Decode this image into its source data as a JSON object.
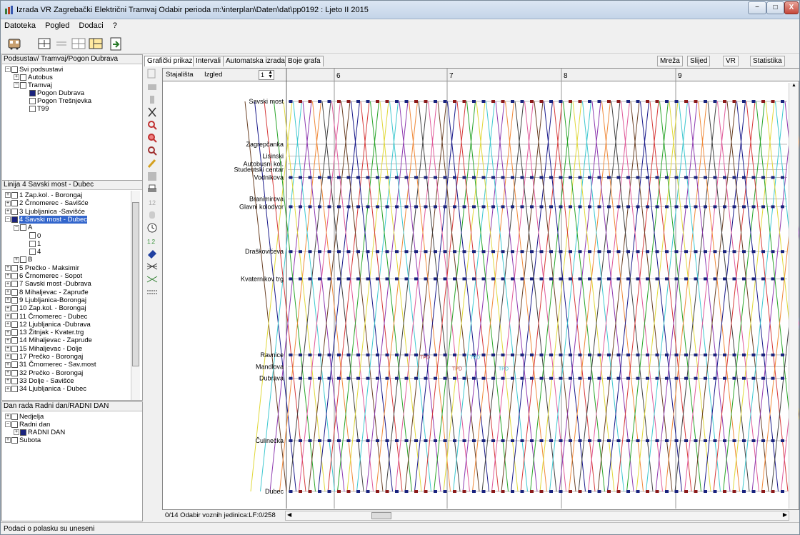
{
  "window": {
    "title": "Izrada VR  Zagrebački Električni Tramvaj Odabir perioda m:\\interplan\\Daten\\dat\\pp0192 : Ljeto II 2015"
  },
  "menu": [
    "Datoteka",
    "Pogled",
    "Dodaci",
    "?"
  ],
  "podsustav_panel": {
    "header": "Podsustav/ Tramvaj/Pogon Dubrava",
    "items": [
      {
        "label": "Svi podsustavi",
        "level": 0,
        "expander": "−",
        "checked": false
      },
      {
        "label": "Autobus",
        "level": 1,
        "expander": "+",
        "checked": false
      },
      {
        "label": "Tramvaj",
        "level": 1,
        "expander": "−",
        "checked": false
      },
      {
        "label": "Pogon Dubrava",
        "level": 2,
        "expander": "",
        "checked": true
      },
      {
        "label": "Pogon Trešnjevka",
        "level": 2,
        "expander": "",
        "checked": false
      },
      {
        "label": "T99",
        "level": 2,
        "expander": "",
        "checked": false
      }
    ]
  },
  "linija_panel": {
    "header": "Linija  4 Savski most - Dubec",
    "items": [
      {
        "label": "1 Zap.kol. - Borongaj",
        "level": 0,
        "expander": "+",
        "checked": false
      },
      {
        "label": "2 Črnomerec - Savišće",
        "level": 0,
        "expander": "+",
        "checked": false
      },
      {
        "label": "3 Ljubljanica -Savišće",
        "level": 0,
        "expander": "+",
        "checked": false
      },
      {
        "label": "4 Savski most - Dubec",
        "level": 0,
        "expander": "−",
        "checked": true,
        "selected": true
      },
      {
        "label": "A",
        "level": 1,
        "expander": "−",
        "checked": false
      },
      {
        "label": "0",
        "level": 2,
        "expander": "",
        "checked": false
      },
      {
        "label": "1",
        "level": 2,
        "expander": "",
        "checked": false
      },
      {
        "label": "4",
        "level": 2,
        "expander": "",
        "checked": false
      },
      {
        "label": "B",
        "level": 1,
        "expander": "+",
        "checked": false
      },
      {
        "label": "5 Prečko - Maksimir",
        "level": 0,
        "expander": "+",
        "checked": false
      },
      {
        "label": "6 Črnomerec - Sopot",
        "level": 0,
        "expander": "+",
        "checked": false
      },
      {
        "label": "7 Savski most -Dubrava",
        "level": 0,
        "expander": "+",
        "checked": false
      },
      {
        "label": "8 Mihaljevac - Zapruđe",
        "level": 0,
        "expander": "+",
        "checked": false
      },
      {
        "label": "9 Ljubljanica-Borongaj",
        "level": 0,
        "expander": "+",
        "checked": false
      },
      {
        "label": "10 Zap.kol. - Borongaj",
        "level": 0,
        "expander": "+",
        "checked": false
      },
      {
        "label": "11 Črnomerec - Dubec",
        "level": 0,
        "expander": "+",
        "checked": false
      },
      {
        "label": "12 Ljubljanica -Dubrava",
        "level": 0,
        "expander": "+",
        "checked": false
      },
      {
        "label": "13 Žitnjak - Kvater.trg",
        "level": 0,
        "expander": "+",
        "checked": false
      },
      {
        "label": "14 Mihaljevac - Zapruđe",
        "level": 0,
        "expander": "+",
        "checked": false
      },
      {
        "label": "15 Mihaljevac - Dolje",
        "level": 0,
        "expander": "+",
        "checked": false
      },
      {
        "label": "17 Prečko - Borongaj",
        "level": 0,
        "expander": "+",
        "checked": false
      },
      {
        "label": "31 Črnomerec - Sav.most",
        "level": 0,
        "expander": "+",
        "checked": false
      },
      {
        "label": "32 Prečko - Borongaj",
        "level": 0,
        "expander": "+",
        "checked": false
      },
      {
        "label": "33 Dolje - Savišće",
        "level": 0,
        "expander": "+",
        "checked": false
      },
      {
        "label": "34 Ljubljanica - Dubec",
        "level": 0,
        "expander": "+",
        "checked": false
      }
    ]
  },
  "dan_panel": {
    "header": "Dan rada  Radni dan/RADNI DAN",
    "items": [
      {
        "label": "Nedjelja",
        "level": 0,
        "expander": "+",
        "checked": false
      },
      {
        "label": "Radni dan",
        "level": 0,
        "expander": "−",
        "checked": false
      },
      {
        "label": "RADNI DAN",
        "level": 1,
        "expander": "+",
        "checked": true
      },
      {
        "label": "Subota",
        "level": 0,
        "expander": "+",
        "checked": false
      }
    ]
  },
  "tabs_left": [
    "Grafički prikaz",
    "Intervali",
    "Automatska izrada",
    "Boje grafa"
  ],
  "tabs_right": [
    "Mreža",
    "Slijed",
    "VR",
    "Statistika"
  ],
  "graph": {
    "col_stajalista": "Stajališta",
    "col_izgled": "Izgled",
    "izgled_value": "1",
    "hours": [
      "6",
      "7",
      "8",
      "9"
    ],
    "stops": [
      {
        "name": "Savski most",
        "pos": 0.0
      },
      {
        "name": "Zagrepčanka",
        "pos": 0.11
      },
      {
        "name": "Lisinski",
        "pos": 0.14
      },
      {
        "name": "Autobusni kol.",
        "pos": 0.16
      },
      {
        "name": "Studentski centar",
        "pos": 0.175
      },
      {
        "name": "Vodnikova",
        "pos": 0.195
      },
      {
        "name": "Branimirova",
        "pos": 0.25
      },
      {
        "name": "Glavni kolodvor",
        "pos": 0.27
      },
      {
        "name": "Draškovićeva",
        "pos": 0.385
      },
      {
        "name": "Kvaternikov trg",
        "pos": 0.455
      },
      {
        "name": "Ravnice",
        "pos": 0.65
      },
      {
        "name": "Mandlova",
        "pos": 0.68
      },
      {
        "name": "Dubrava",
        "pos": 0.71
      },
      {
        "name": "Čulinečka",
        "pos": 0.87
      },
      {
        "name": "Dubec",
        "pos": 1.0
      }
    ],
    "annotations": [
      "TPD",
      "TPD",
      "TPD",
      "TPD"
    ],
    "footer": "0/14 Odabir voznih jedinica:LF:0/258",
    "line_colors": [
      "#6b4226",
      "#1a1a8a",
      "#d63a3a",
      "#2aa52a",
      "#e0d83a",
      "#3ec8d0",
      "#8e3ab0",
      "#f08a3a",
      "#444444",
      "#e05a9a"
    ]
  },
  "status": "Podaci o polasku su uneseni",
  "window_buttons": [
    "−",
    "□",
    "X"
  ]
}
